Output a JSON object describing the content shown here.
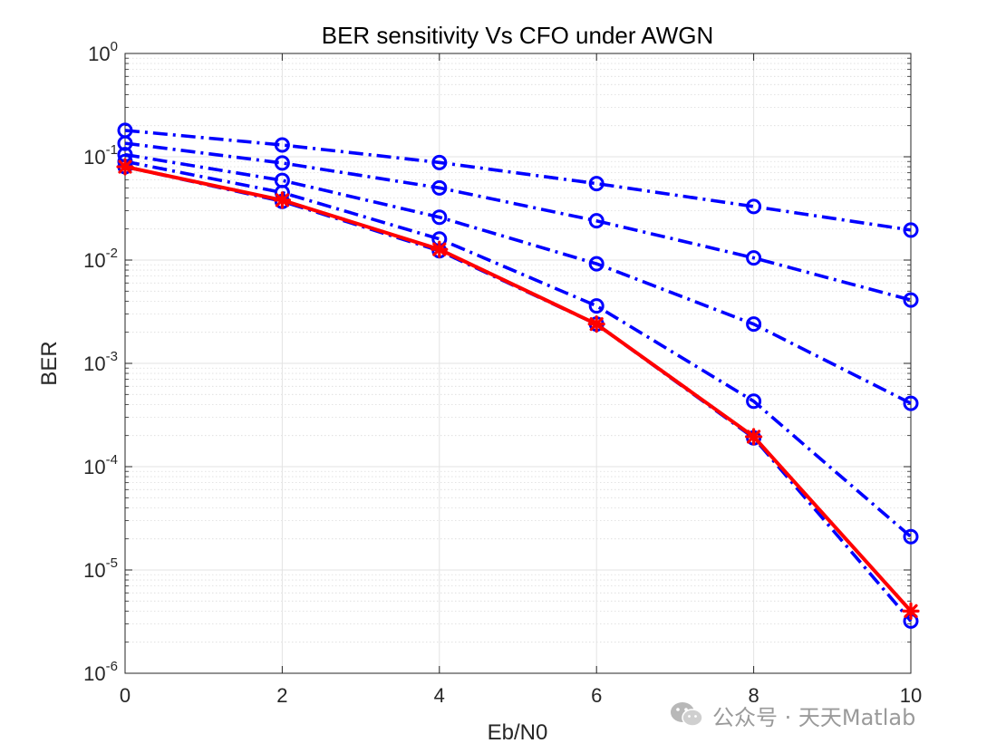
{
  "chart_data": {
    "type": "line",
    "title": "BER sensitivity Vs CFO under AWGN",
    "xlabel": "Eb/N0",
    "ylabel": "BER",
    "x": [
      0,
      2,
      4,
      6,
      8,
      10
    ],
    "xlim": [
      0,
      10
    ],
    "ylim": [
      1e-06,
      1
    ],
    "yscale": "log",
    "xticks": [
      "0",
      "2",
      "4",
      "6",
      "8",
      "10"
    ],
    "yticks": [
      {
        "base": "10",
        "exp": "0",
        "value": 1
      },
      {
        "base": "10",
        "exp": "-1",
        "value": 0.1
      },
      {
        "base": "10",
        "exp": "-2",
        "value": 0.01
      },
      {
        "base": "10",
        "exp": "-3",
        "value": 0.001
      },
      {
        "base": "10",
        "exp": "-4",
        "value": 0.0001
      },
      {
        "base": "10",
        "exp": "-5",
        "value": 1e-05
      },
      {
        "base": "10",
        "exp": "-6",
        "value": 1e-06
      }
    ],
    "grid": true,
    "minor_grid": true,
    "series": [
      {
        "color": "#0000ff",
        "line": "dashdot",
        "marker": "circle",
        "values": [
          0.18,
          0.13,
          0.088,
          0.055,
          0.033,
          0.0195
        ]
      },
      {
        "color": "#0000ff",
        "line": "dashdot",
        "marker": "circle",
        "values": [
          0.135,
          0.087,
          0.05,
          0.024,
          0.0105,
          0.0041
        ]
      },
      {
        "color": "#0000ff",
        "line": "dashdot",
        "marker": "circle",
        "values": [
          0.105,
          0.059,
          0.026,
          0.0092,
          0.0024,
          0.00041
        ]
      },
      {
        "color": "#0000ff",
        "line": "dashdot",
        "marker": "circle",
        "values": [
          0.09,
          0.045,
          0.016,
          0.0036,
          0.00043,
          2.1e-05
        ]
      },
      {
        "color": "#0000ff",
        "line": "dashdot",
        "marker": "circle",
        "values": [
          0.08,
          0.037,
          0.0123,
          0.0024,
          0.00019,
          3.2e-06
        ]
      },
      {
        "color": "#ff0000",
        "line": "solid",
        "marker": "star",
        "values": [
          0.08,
          0.038,
          0.0127,
          0.0024,
          0.000195,
          4e-06
        ]
      }
    ]
  },
  "watermark": {
    "text": "公众号 · 天天Matlab",
    "icon": "wechat-icon"
  }
}
